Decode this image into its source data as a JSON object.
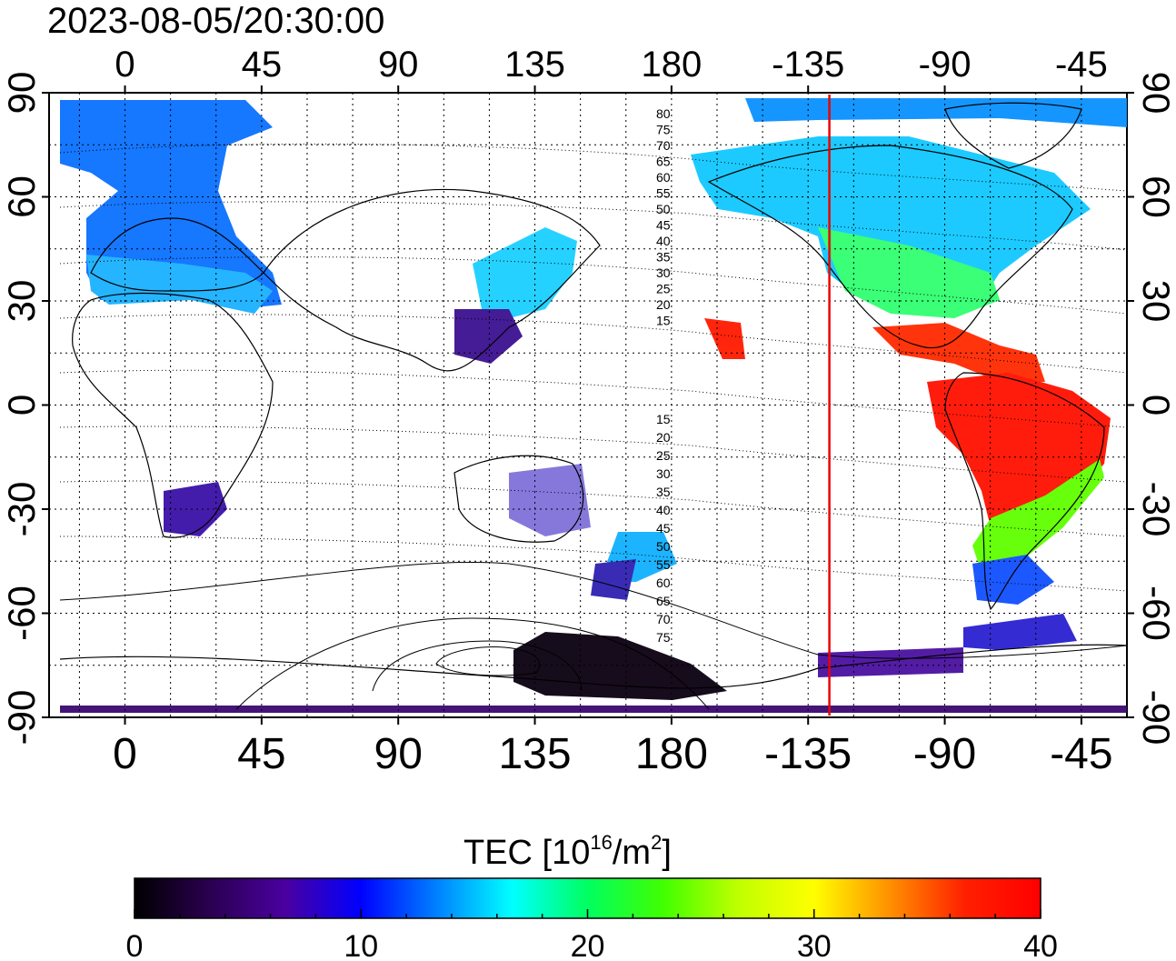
{
  "timestamp": "2023-08-05/20:30:00",
  "map": {
    "x_ticks": [
      "0",
      "45",
      "90",
      "135",
      "180",
      "-135",
      "-90",
      "-45"
    ],
    "y_ticks": [
      "90",
      "60",
      "30",
      "0",
      "-30",
      "-60",
      "-90"
    ],
    "meridian_marker_longitude": -128,
    "meridian_marker_color": "#ee0000",
    "contour_labels_north": [
      "80",
      "75",
      "70",
      "65",
      "60",
      "55",
      "50",
      "45",
      "40",
      "35",
      "30",
      "25",
      "20",
      "15"
    ],
    "contour_labels_south": [
      "15",
      "20",
      "25",
      "30",
      "35",
      "40",
      "45",
      "50",
      "55",
      "60",
      "65",
      "70",
      "75"
    ]
  },
  "colorbar": {
    "title_main": "TEC  [10",
    "title_sup1": "16",
    "title_mid": "/m",
    "title_sup2": "2",
    "title_end": "]",
    "tick_labels": [
      "0",
      "10",
      "20",
      "30",
      "40"
    ],
    "min": 0,
    "max": 40,
    "colors": [
      "#000000",
      "#2a0050",
      "#4a00a0",
      "#0000ff",
      "#0080ff",
      "#00ffff",
      "#00ff60",
      "#40ff00",
      "#c0ff00",
      "#ffff00",
      "#ff9000",
      "#ff2000",
      "#ff0000"
    ]
  }
}
